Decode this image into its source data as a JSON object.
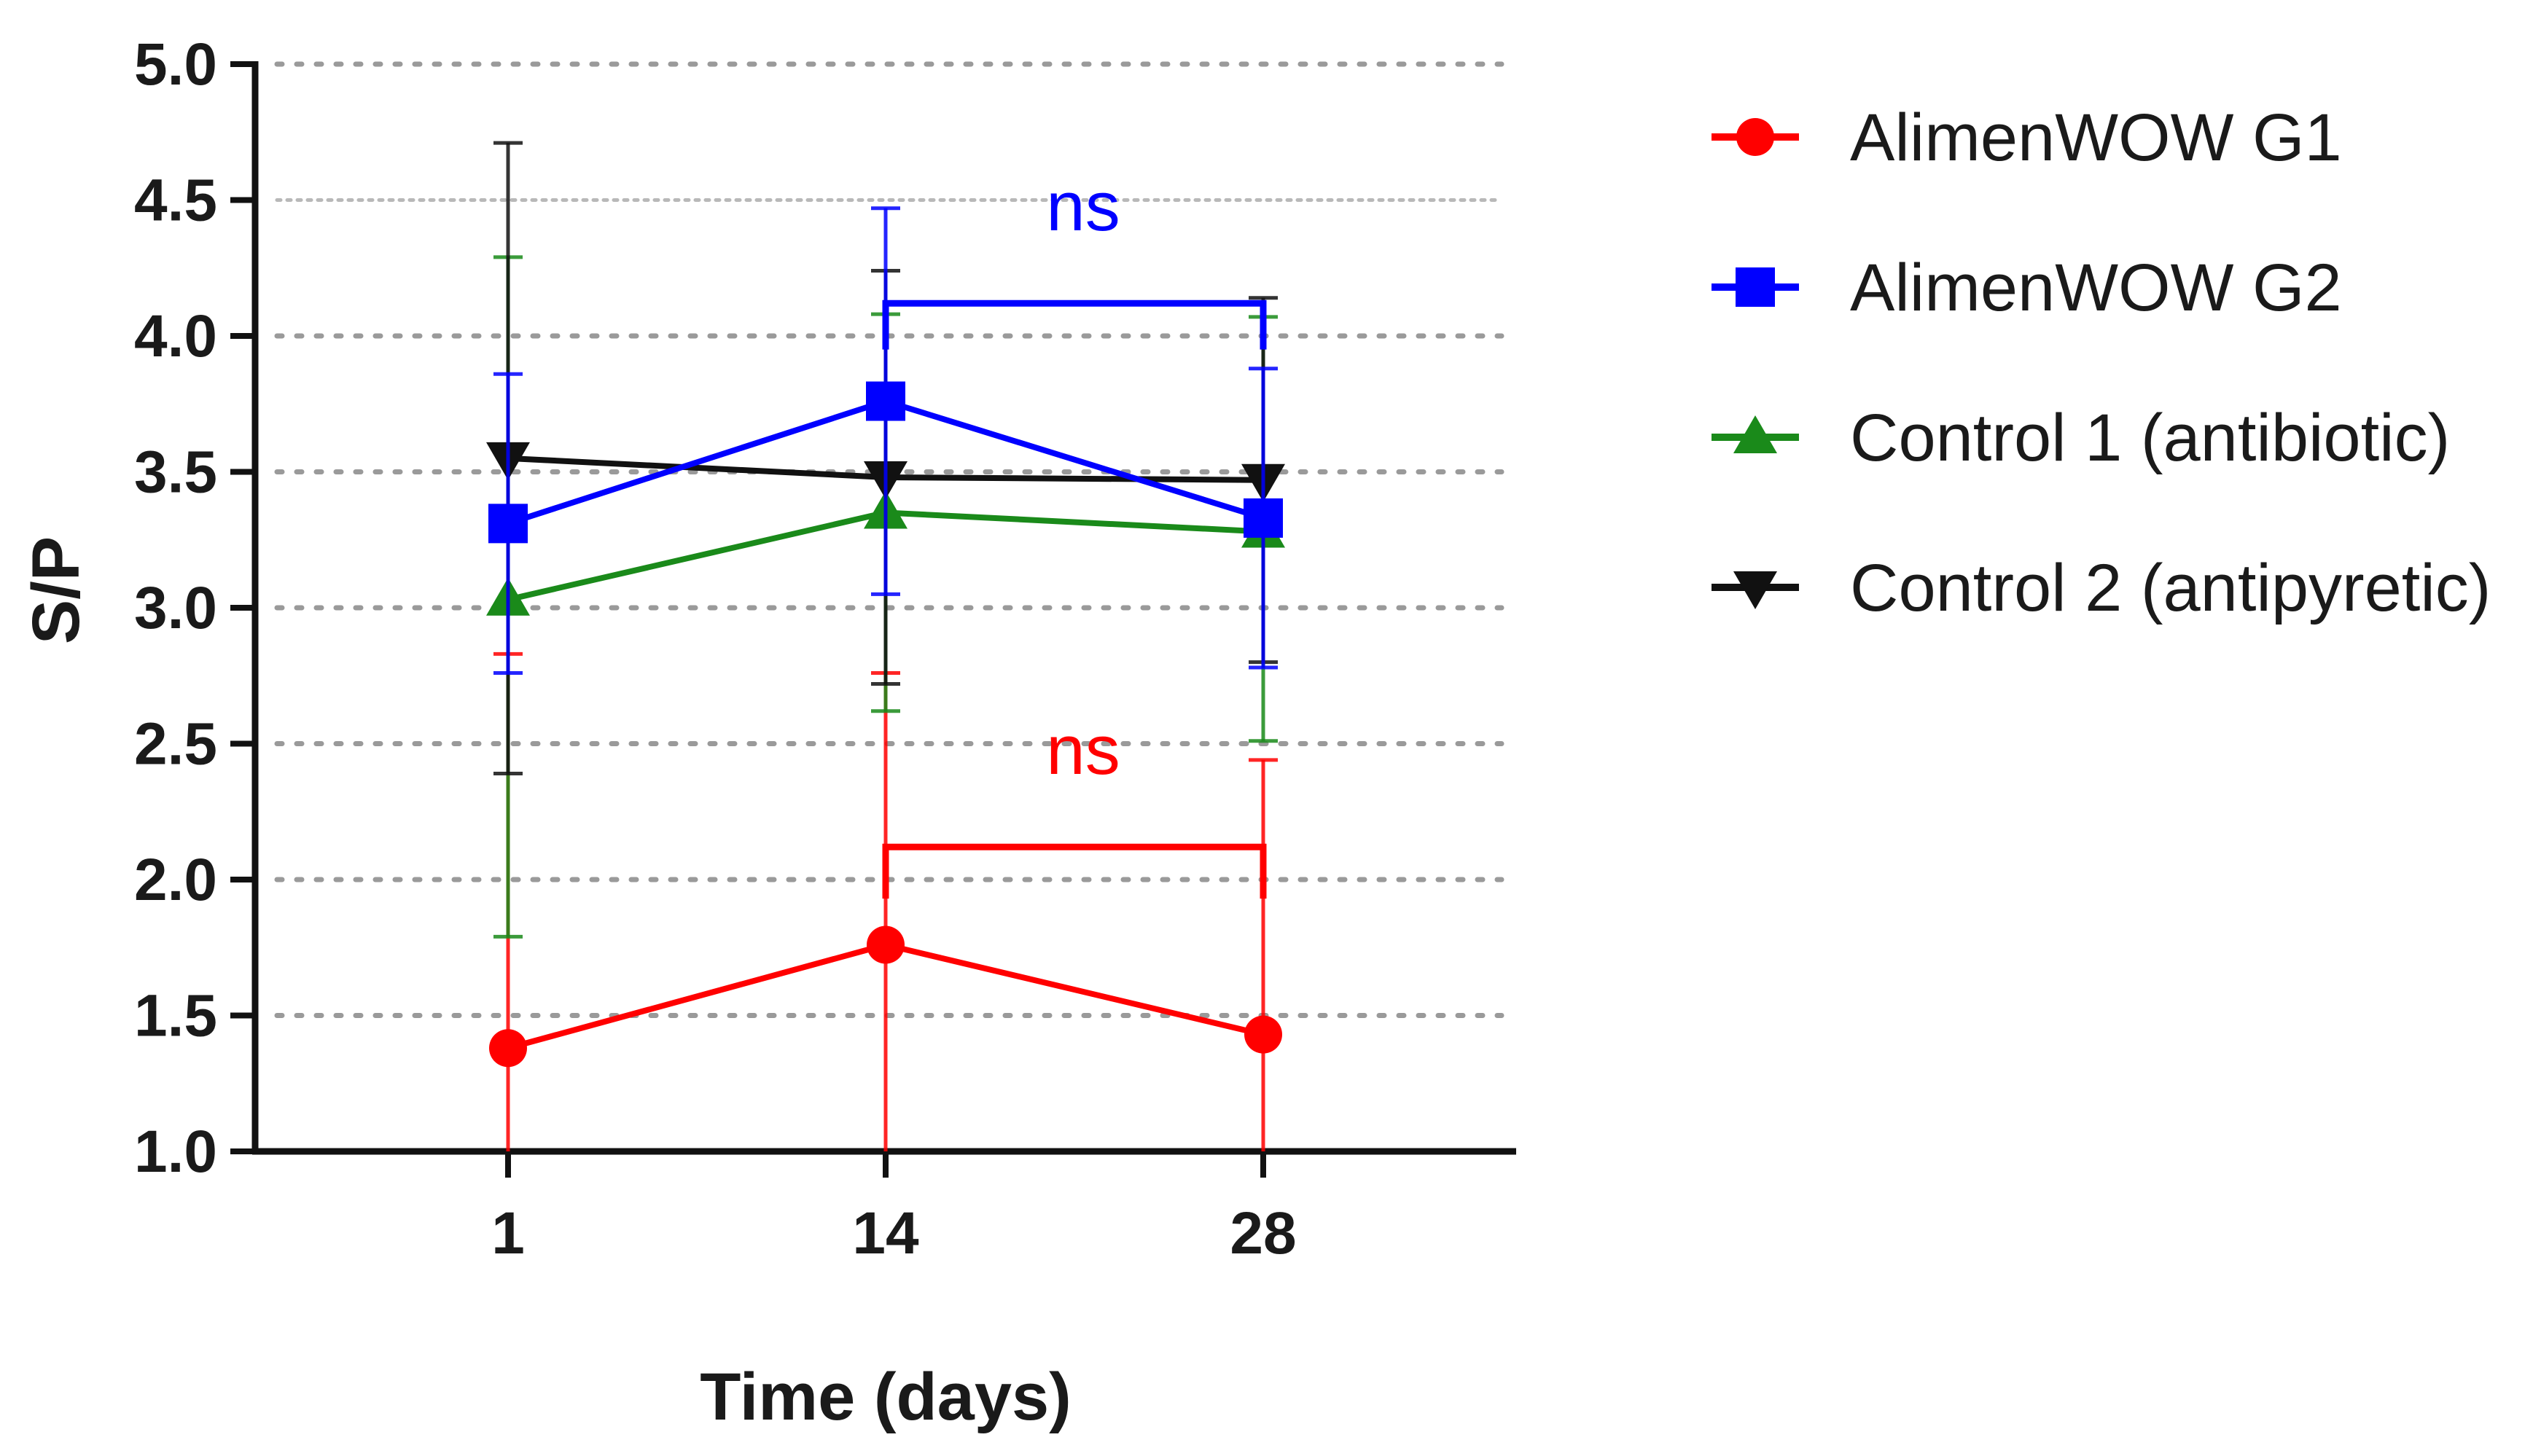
{
  "chart_data": {
    "type": "line",
    "title": "",
    "xlabel": "Time (days)",
    "ylabel": "S/P",
    "x": [
      1,
      14,
      28
    ],
    "xticks": [
      "1",
      "14",
      "28"
    ],
    "ylim": [
      1.0,
      5.0
    ],
    "yticks": [
      "1.0",
      "1.5",
      "2.0",
      "2.5",
      "3.0",
      "3.5",
      "4.0",
      "4.5",
      "5.0"
    ],
    "grid": "horizontal dotted",
    "legend_position": "right",
    "series": [
      {
        "name": "AlimenWOW G1",
        "color": "#ff0000",
        "marker": "circle",
        "values": [
          1.38,
          1.76,
          1.43
        ],
        "err_upper": [
          2.83,
          2.76,
          2.44
        ],
        "err_lower": [
          1.0,
          1.0,
          1.0
        ]
      },
      {
        "name": "AlimenWOW G2",
        "color": "#0000ff",
        "marker": "square",
        "values": [
          3.31,
          3.76,
          3.33
        ],
        "err_upper": [
          3.86,
          4.47,
          3.88
        ],
        "err_lower": [
          2.76,
          3.05,
          2.78
        ]
      },
      {
        "name": "Control 1 (antibiotic)",
        "color": "#1a8a1a",
        "marker": "triangle-up",
        "values": [
          3.03,
          3.35,
          3.28
        ],
        "err_upper": [
          4.29,
          4.08,
          4.07
        ],
        "err_lower": [
          1.79,
          2.62,
          2.51
        ]
      },
      {
        "name": "Control 2 (antipyretic)",
        "color": "#111111",
        "marker": "triangle-down",
        "values": [
          3.55,
          3.48,
          3.47
        ],
        "err_upper": [
          4.71,
          4.24,
          4.14
        ],
        "err_lower": [
          2.39,
          2.72,
          2.8
        ]
      }
    ],
    "annotations": [
      {
        "text": "ns",
        "color": "#0000ff",
        "from_x": 14,
        "to_x": 28,
        "bracket_y": 4.12,
        "tick_to": 3.95
      },
      {
        "text": "ns",
        "color": "#ff0000",
        "from_x": 14,
        "to_x": 28,
        "bracket_y": 2.12,
        "tick_to": 1.93
      }
    ]
  }
}
